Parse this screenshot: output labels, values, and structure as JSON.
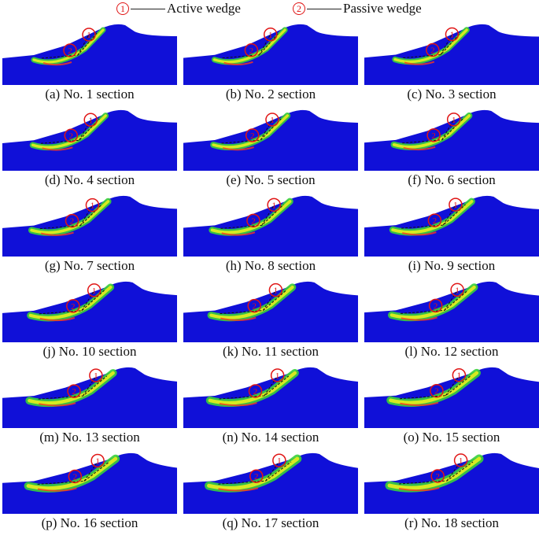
{
  "legend": {
    "active": {
      "marker": "1",
      "label": "Active wedge"
    },
    "passive": {
      "marker": "2",
      "label": "Passive wedge"
    }
  },
  "colors": {
    "soil": "#1010d8",
    "wedge_band": "#3ad23a",
    "hot": "#f2f21a",
    "core": "#ff3a1a",
    "marker": "#e01515",
    "slip_line": "#111111"
  },
  "panels": [
    {
      "label": "(a) No. 1 section"
    },
    {
      "label": "(b) No. 2 section"
    },
    {
      "label": "(c) No. 3 section"
    },
    {
      "label": "(d) No. 4 section"
    },
    {
      "label": "(e) No. 5 section"
    },
    {
      "label": "(f) No. 6 section"
    },
    {
      "label": "(g) No. 7 section"
    },
    {
      "label": "(h) No. 8 section"
    },
    {
      "label": "(i) No. 9 section"
    },
    {
      "label": "(j) No. 10 section"
    },
    {
      "label": "(k) No. 11 section"
    },
    {
      "label": "(l) No. 12 section"
    },
    {
      "label": "(m) No. 13 section"
    },
    {
      "label": "(n) No. 14 section"
    },
    {
      "label": "(o) No. 15 section"
    },
    {
      "label": "(p) No. 16 section"
    },
    {
      "label": "(q) No. 17 section"
    },
    {
      "label": "(r) No. 18 section"
    }
  ]
}
